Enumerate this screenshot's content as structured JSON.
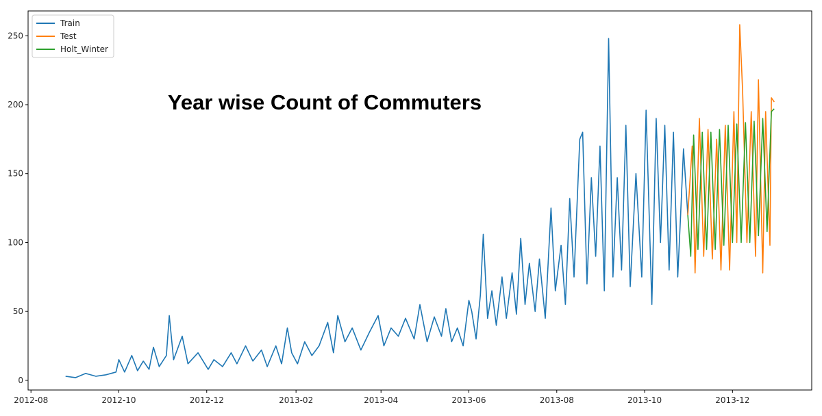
{
  "chart_data": {
    "type": "line",
    "title": "Year wise Count of Commuters",
    "xlabel": "",
    "ylabel": "",
    "x_axis_type": "date",
    "xlim": [
      "2012-07-30",
      "2014-01-25"
    ],
    "ylim": [
      -7,
      268
    ],
    "grid": false,
    "legend_position": "top-left",
    "x_ticks": [
      "2012-08-01",
      "2012-10-01",
      "2012-12-01",
      "2013-02-01",
      "2013-04-01",
      "2013-06-01",
      "2013-08-01",
      "2013-10-01",
      "2013-12-01"
    ],
    "x_tick_labels": [
      "2012-08",
      "2012-10",
      "2012-12",
      "2013-02",
      "2013-04",
      "2013-06",
      "2013-08",
      "2013-10",
      "2013-12"
    ],
    "y_ticks": [
      0,
      50,
      100,
      150,
      200,
      250
    ],
    "y_tick_labels": [
      "0",
      "50",
      "100",
      "150",
      "200",
      "250"
    ],
    "series": [
      {
        "name": "Train",
        "color": "#1f77b4",
        "points": [
          [
            "2012-08-25",
            3
          ],
          [
            "2012-09-01",
            2
          ],
          [
            "2012-09-08",
            5
          ],
          [
            "2012-09-15",
            3
          ],
          [
            "2012-09-22",
            4
          ],
          [
            "2012-09-29",
            6
          ],
          [
            "2012-10-01",
            15
          ],
          [
            "2012-10-05",
            6
          ],
          [
            "2012-10-10",
            18
          ],
          [
            "2012-10-14",
            7
          ],
          [
            "2012-10-18",
            14
          ],
          [
            "2012-10-22",
            8
          ],
          [
            "2012-10-25",
            24
          ],
          [
            "2012-10-29",
            10
          ],
          [
            "2012-11-03",
            18
          ],
          [
            "2012-11-05",
            47
          ],
          [
            "2012-11-08",
            15
          ],
          [
            "2012-11-14",
            32
          ],
          [
            "2012-11-18",
            12
          ],
          [
            "2012-11-25",
            20
          ],
          [
            "2012-12-02",
            8
          ],
          [
            "2012-12-06",
            15
          ],
          [
            "2012-12-12",
            10
          ],
          [
            "2012-12-18",
            20
          ],
          [
            "2012-12-22",
            12
          ],
          [
            "2012-12-28",
            25
          ],
          [
            "2013-01-02",
            14
          ],
          [
            "2013-01-08",
            22
          ],
          [
            "2013-01-12",
            10
          ],
          [
            "2013-01-18",
            25
          ],
          [
            "2013-01-22",
            12
          ],
          [
            "2013-01-26",
            38
          ],
          [
            "2013-01-29",
            20
          ],
          [
            "2013-02-02",
            12
          ],
          [
            "2013-02-07",
            28
          ],
          [
            "2013-02-12",
            18
          ],
          [
            "2013-02-17",
            25
          ],
          [
            "2013-02-23",
            42
          ],
          [
            "2013-02-27",
            20
          ],
          [
            "2013-03-02",
            47
          ],
          [
            "2013-03-07",
            28
          ],
          [
            "2013-03-12",
            38
          ],
          [
            "2013-03-18",
            22
          ],
          [
            "2013-03-24",
            35
          ],
          [
            "2013-03-30",
            47
          ],
          [
            "2013-04-03",
            25
          ],
          [
            "2013-04-08",
            38
          ],
          [
            "2013-04-13",
            32
          ],
          [
            "2013-04-18",
            45
          ],
          [
            "2013-04-24",
            30
          ],
          [
            "2013-04-28",
            55
          ],
          [
            "2013-05-03",
            28
          ],
          [
            "2013-05-08",
            46
          ],
          [
            "2013-05-13",
            32
          ],
          [
            "2013-05-16",
            52
          ],
          [
            "2013-05-20",
            28
          ],
          [
            "2013-05-24",
            38
          ],
          [
            "2013-05-28",
            25
          ],
          [
            "2013-06-01",
            58
          ],
          [
            "2013-06-03",
            50
          ],
          [
            "2013-06-06",
            30
          ],
          [
            "2013-06-09",
            62
          ],
          [
            "2013-06-11",
            106
          ],
          [
            "2013-06-14",
            45
          ],
          [
            "2013-06-17",
            65
          ],
          [
            "2013-06-20",
            40
          ],
          [
            "2013-06-24",
            75
          ],
          [
            "2013-06-27",
            45
          ],
          [
            "2013-07-01",
            78
          ],
          [
            "2013-07-04",
            48
          ],
          [
            "2013-07-07",
            103
          ],
          [
            "2013-07-10",
            55
          ],
          [
            "2013-07-13",
            85
          ],
          [
            "2013-07-17",
            50
          ],
          [
            "2013-07-20",
            88
          ],
          [
            "2013-07-24",
            45
          ],
          [
            "2013-07-28",
            125
          ],
          [
            "2013-07-31",
            65
          ],
          [
            "2013-08-04",
            98
          ],
          [
            "2013-08-07",
            55
          ],
          [
            "2013-08-10",
            132
          ],
          [
            "2013-08-13",
            75
          ],
          [
            "2013-08-17",
            175
          ],
          [
            "2013-08-19",
            180
          ],
          [
            "2013-08-22",
            70
          ],
          [
            "2013-08-25",
            147
          ],
          [
            "2013-08-28",
            90
          ],
          [
            "2013-08-31",
            170
          ],
          [
            "2013-09-03",
            65
          ],
          [
            "2013-09-06",
            248
          ],
          [
            "2013-09-09",
            75
          ],
          [
            "2013-09-12",
            147
          ],
          [
            "2013-09-15",
            80
          ],
          [
            "2013-09-18",
            185
          ],
          [
            "2013-09-21",
            68
          ],
          [
            "2013-09-25",
            150
          ],
          [
            "2013-09-29",
            75
          ],
          [
            "2013-10-02",
            196
          ],
          [
            "2013-10-06",
            55
          ],
          [
            "2013-10-09",
            190
          ],
          [
            "2013-10-12",
            100
          ],
          [
            "2013-10-15",
            185
          ],
          [
            "2013-10-18",
            80
          ],
          [
            "2013-10-21",
            180
          ],
          [
            "2013-10-24",
            75
          ],
          [
            "2013-10-26",
            120
          ],
          [
            "2013-10-28",
            168
          ],
          [
            "2013-10-31",
            120
          ]
        ]
      },
      {
        "name": "Test",
        "color": "#ff7f0e",
        "points": [
          [
            "2013-10-31",
            120
          ],
          [
            "2013-11-03",
            170
          ],
          [
            "2013-11-05",
            78
          ],
          [
            "2013-11-08",
            190
          ],
          [
            "2013-11-11",
            90
          ],
          [
            "2013-11-14",
            182
          ],
          [
            "2013-11-17",
            88
          ],
          [
            "2013-11-20",
            175
          ],
          [
            "2013-11-23",
            80
          ],
          [
            "2013-11-26",
            185
          ],
          [
            "2013-11-29",
            80
          ],
          [
            "2013-12-02",
            195
          ],
          [
            "2013-12-04",
            100
          ],
          [
            "2013-12-06",
            258
          ],
          [
            "2013-12-08",
            210
          ],
          [
            "2013-12-11",
            100
          ],
          [
            "2013-12-14",
            195
          ],
          [
            "2013-12-17",
            90
          ],
          [
            "2013-12-19",
            218
          ],
          [
            "2013-12-22",
            78
          ],
          [
            "2013-12-24",
            195
          ],
          [
            "2013-12-27",
            98
          ],
          [
            "2013-12-28",
            205
          ],
          [
            "2013-12-30",
            202
          ]
        ]
      },
      {
        "name": "Holt_Winter",
        "color": "#2ca02c",
        "points": [
          [
            "2013-10-31",
            120
          ],
          [
            "2013-11-02",
            90
          ],
          [
            "2013-11-04",
            178
          ],
          [
            "2013-11-07",
            95
          ],
          [
            "2013-11-10",
            180
          ],
          [
            "2013-11-13",
            95
          ],
          [
            "2013-11-16",
            180
          ],
          [
            "2013-11-19",
            95
          ],
          [
            "2013-11-22",
            182
          ],
          [
            "2013-11-25",
            98
          ],
          [
            "2013-11-28",
            185
          ],
          [
            "2013-12-01",
            100
          ],
          [
            "2013-12-04",
            186
          ],
          [
            "2013-12-07",
            100
          ],
          [
            "2013-12-10",
            187
          ],
          [
            "2013-12-13",
            100
          ],
          [
            "2013-12-16",
            188
          ],
          [
            "2013-12-19",
            105
          ],
          [
            "2013-12-22",
            190
          ],
          [
            "2013-12-25",
            108
          ],
          [
            "2013-12-28",
            195
          ],
          [
            "2013-12-30",
            197
          ]
        ]
      }
    ]
  }
}
